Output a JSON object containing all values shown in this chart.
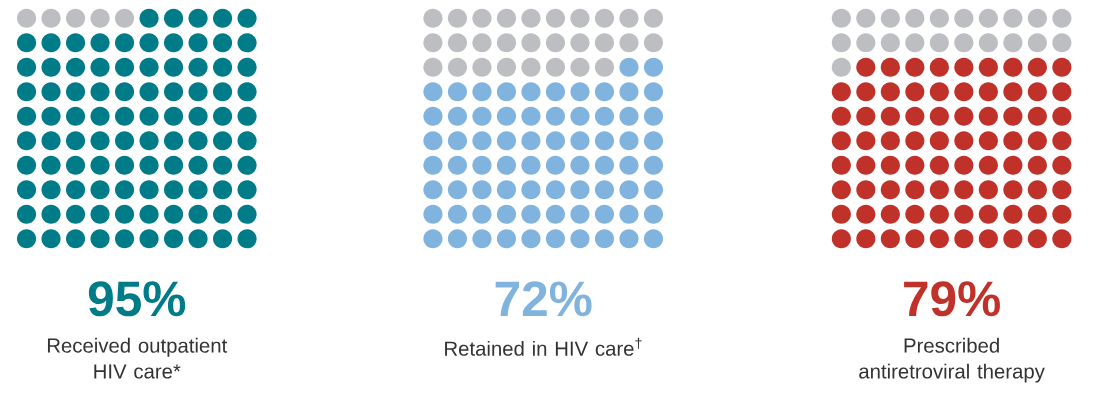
{
  "chart_data": [
    {
      "type": "other",
      "values": [
        95
      ],
      "value_labels": [
        "95%"
      ],
      "colors": [
        "#007c89"
      ],
      "xlabel": "Received outpatient HIV care*"
    },
    {
      "type": "other",
      "values": [
        72
      ],
      "value_labels": [
        "72%"
      ],
      "colors": [
        "#80b3de"
      ],
      "xlabel": "Retained in HIV care$^{†}$"
    },
    {
      "type": "other",
      "values": [
        79
      ],
      "value_labels": [
        "79%"
      ],
      "colors": [
        "#c0312a"
      ],
      "xlabel": "Prescribed antiretroviral therapy"
    }
  ]
}
